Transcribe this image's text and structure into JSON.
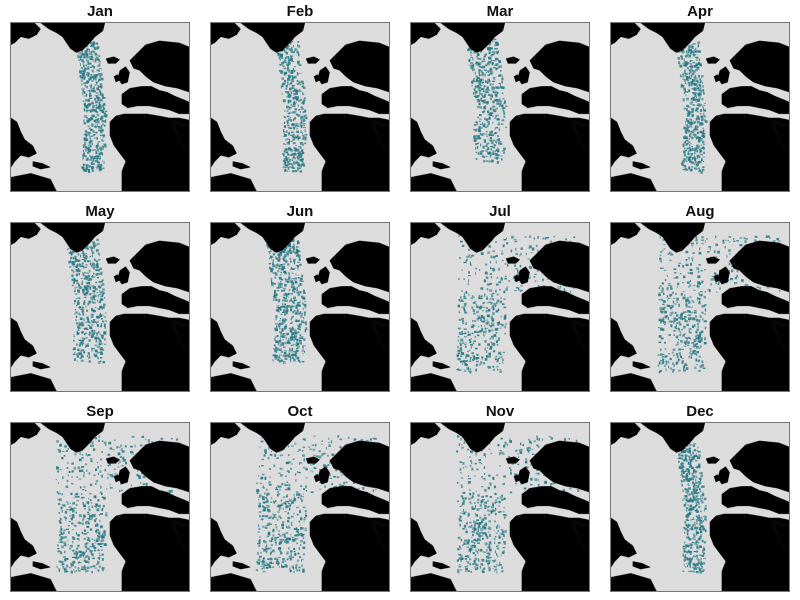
{
  "colors": {
    "ocean": "#dcdcdc",
    "land": "#000000",
    "presence": "#2a7a86",
    "border": "#777777"
  },
  "panels": [
    {
      "month": "Jan",
      "intensity": 0.75,
      "extent": "eastern"
    },
    {
      "month": "Feb",
      "intensity": 0.65,
      "extent": "eastern"
    },
    {
      "month": "Mar",
      "intensity": 0.7,
      "extent": "central"
    },
    {
      "month": "Apr",
      "intensity": 0.7,
      "extent": "eastern"
    },
    {
      "month": "May",
      "intensity": 0.75,
      "extent": "central"
    },
    {
      "month": "Jun",
      "intensity": 0.8,
      "extent": "central"
    },
    {
      "month": "Jul",
      "intensity": 0.75,
      "extent": "wide"
    },
    {
      "month": "Aug",
      "intensity": 0.8,
      "extent": "wide"
    },
    {
      "month": "Sep",
      "intensity": 0.85,
      "extent": "wide"
    },
    {
      "month": "Oct",
      "intensity": 0.85,
      "extent": "wide"
    },
    {
      "month": "Nov",
      "intensity": 0.8,
      "extent": "wide"
    },
    {
      "month": "Dec",
      "intensity": 0.7,
      "extent": "eastern"
    }
  ]
}
